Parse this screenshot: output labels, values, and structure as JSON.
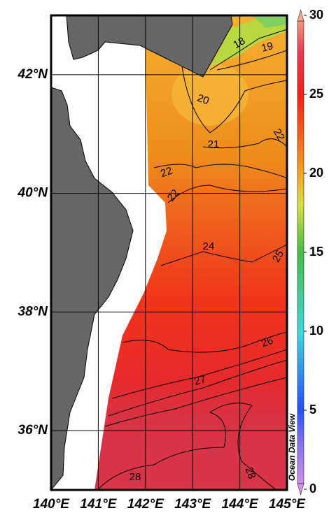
{
  "map": {
    "xlim": [
      140,
      145
    ],
    "ylim": [
      35,
      43
    ],
    "xticks": [
      {
        "value": 140,
        "label": "140°E"
      },
      {
        "value": 141,
        "label": "141°E"
      },
      {
        "value": 142,
        "label": "142°E"
      },
      {
        "value": 143,
        "label": "143°E"
      },
      {
        "value": 144,
        "label": "144°E"
      },
      {
        "value": 145,
        "label": "145°E"
      }
    ],
    "yticks": [
      {
        "value": 36,
        "label": "36°N"
      },
      {
        "value": 38,
        "label": "38°N"
      },
      {
        "value": 40,
        "label": "40°N"
      },
      {
        "value": 42,
        "label": "42°N"
      }
    ],
    "colorbar": {
      "lim": [
        0,
        30
      ],
      "ticks": [
        0,
        5,
        10,
        15,
        20,
        25,
        30
      ]
    },
    "contour_labels": [
      18,
      19,
      20,
      21,
      22,
      22,
      22,
      24,
      25,
      26,
      27,
      28,
      28
    ],
    "credit": "Ocean Data View"
  }
}
